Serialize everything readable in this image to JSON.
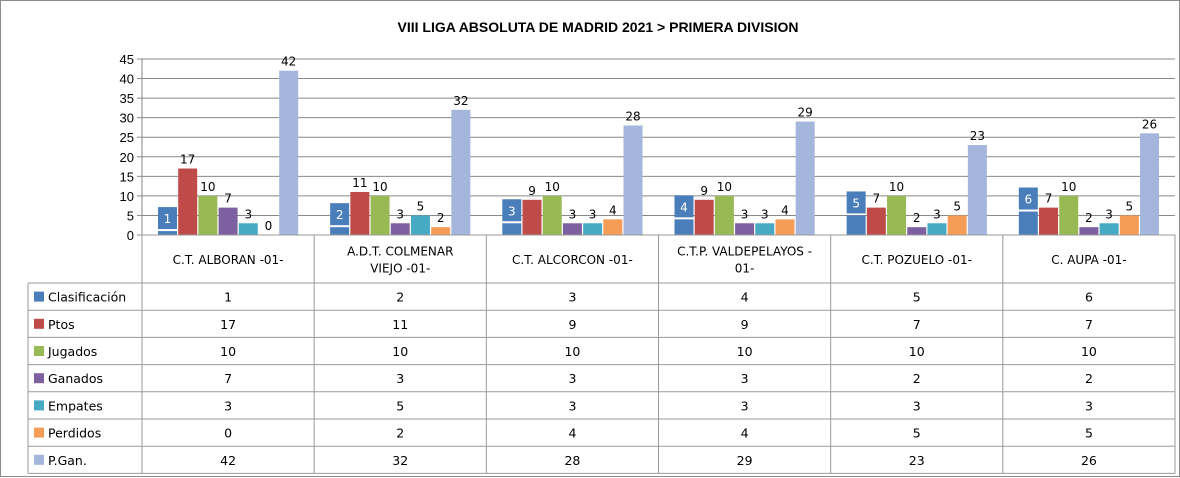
{
  "chart_data": {
    "type": "bar",
    "title": "VIII LIGA ABSOLUTA DE MADRID 2021 > PRIMERA DIVISION",
    "categories": [
      [
        "C.T. ALBORAN -01-"
      ],
      [
        "A.D.T. COLMENAR",
        "VIEJO -01-"
      ],
      [
        "C.T. ALCORCON -01-"
      ],
      [
        "C.T.P. VALDEPELAYOS -",
        "01-"
      ],
      [
        "C.T. POZUELO -01-"
      ],
      [
        "C. AUPA -01-"
      ]
    ],
    "ylim": [
      0,
      45
    ],
    "yticks": [
      0,
      5,
      10,
      15,
      20,
      25,
      30,
      35,
      40,
      45
    ],
    "grid": true,
    "legend": "data-table",
    "series": [
      {
        "name": "Clasificación",
        "color": "#4a7ebb",
        "values": [
          1,
          2,
          3,
          4,
          5,
          6
        ],
        "boxed_label": true
      },
      {
        "name": "Ptos",
        "color": "#be4b48",
        "values": [
          17,
          11,
          9,
          9,
          7,
          7
        ]
      },
      {
        "name": "Jugados",
        "color": "#98b954",
        "values": [
          10,
          10,
          10,
          10,
          10,
          10
        ]
      },
      {
        "name": "Ganados",
        "color": "#7d60a0",
        "values": [
          7,
          3,
          3,
          3,
          2,
          2
        ]
      },
      {
        "name": "Empates",
        "color": "#46aac5",
        "values": [
          3,
          5,
          3,
          3,
          3,
          3
        ]
      },
      {
        "name": "Perdidos",
        "color": "#f59d56",
        "values": [
          0,
          2,
          4,
          4,
          5,
          5
        ]
      },
      {
        "name": "P.Gan.",
        "color": "#a5b6dc",
        "values": [
          42,
          32,
          28,
          29,
          23,
          26
        ]
      }
    ]
  }
}
